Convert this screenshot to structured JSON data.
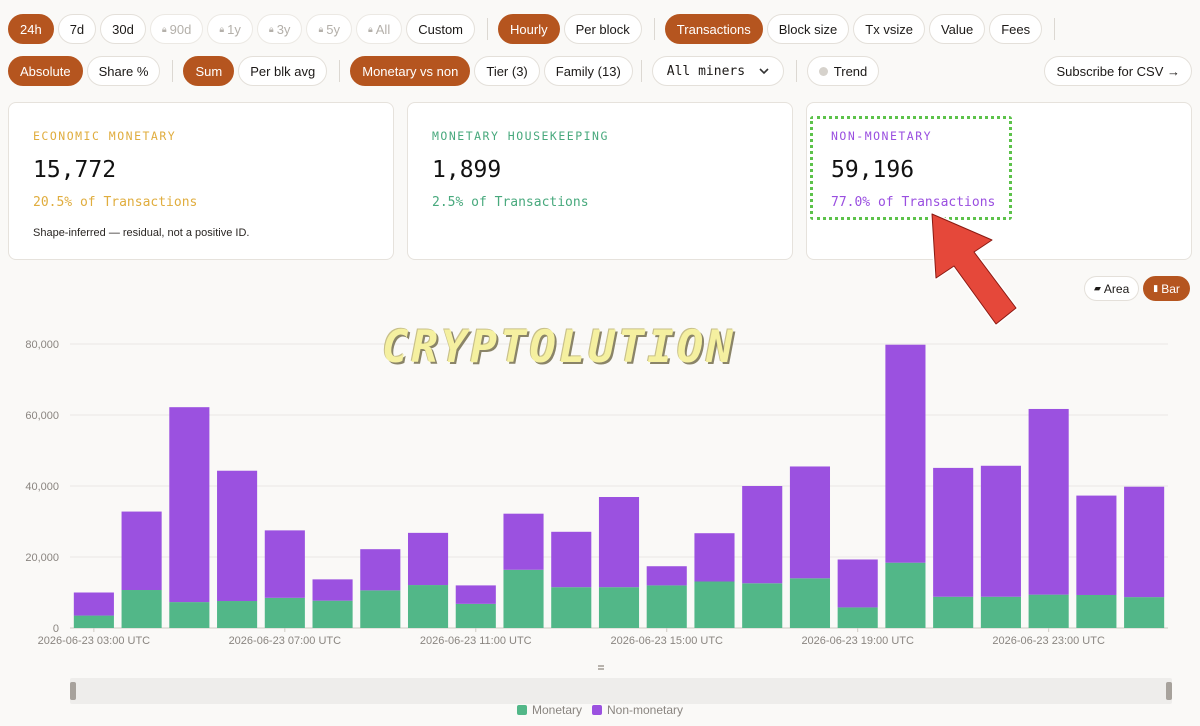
{
  "range_buttons": [
    {
      "label": "24h",
      "active": true,
      "locked": false
    },
    {
      "label": "7d",
      "active": false,
      "locked": false
    },
    {
      "label": "30d",
      "active": false,
      "locked": false
    },
    {
      "label": "90d",
      "active": false,
      "locked": true
    },
    {
      "label": "1y",
      "active": false,
      "locked": true
    },
    {
      "label": "3y",
      "active": false,
      "locked": true
    },
    {
      "label": "5y",
      "active": false,
      "locked": true
    },
    {
      "label": "All",
      "active": false,
      "locked": true
    },
    {
      "label": "Custom",
      "active": false,
      "locked": false
    }
  ],
  "granularity": {
    "hourly": "Hourly",
    "per_block": "Per block"
  },
  "metrics": {
    "transactions": "Transactions",
    "block_size": "Block size",
    "tx_vsize": "Tx vsize",
    "value": "Value",
    "fees": "Fees"
  },
  "mode": {
    "absolute": "Absolute",
    "share": "Share %"
  },
  "agg": {
    "sum": "Sum",
    "per_blk_avg": "Per blk avg"
  },
  "breakdown": {
    "monetary_vs_non": "Monetary vs non",
    "tier": "Tier (3)",
    "family": "Family (13)"
  },
  "miner_select": {
    "value": "All miners"
  },
  "trend": {
    "label": "Trend"
  },
  "subscribe": {
    "label": "Subscribe for CSV →"
  },
  "cards": {
    "economic": {
      "label": "ECONOMIC MONETARY",
      "value": "15,772",
      "share": "20.5% of Transactions",
      "note": "Shape-inferred — residual, not a positive ID."
    },
    "housekeeping": {
      "label": "MONETARY HOUSEKEEPING",
      "value": "1,899",
      "share": "2.5% of Transactions"
    },
    "non_monetary": {
      "label": "NON-MONETARY",
      "value": "59,196",
      "share": "77.0% of Transactions"
    }
  },
  "chart_toggle": {
    "area": "Area",
    "bar": "Bar"
  },
  "watermark": "CRYPTOLUTION",
  "colors": {
    "accent": "#b5551f",
    "monetary": "#52b788",
    "non_monetary": "#9b51e0",
    "economic": "#e0ad3e",
    "housekeeping": "#48a97d"
  },
  "chart_data": {
    "type": "bar",
    "stacked": true,
    "x_tick_labels": [
      "2026-06-23 03:00 UTC",
      "2026-06-23 07:00 UTC",
      "2026-06-23 11:00 UTC",
      "2026-06-23 15:00 UTC",
      "2026-06-23 19:00 UTC",
      "2026-06-23 23:00 UTC"
    ],
    "y_ticks": [
      "0",
      "20,000",
      "40,000",
      "60,000",
      "80,000"
    ],
    "ylim": [
      0,
      80000
    ],
    "grid": true,
    "legend_position": "bottom",
    "series": [
      {
        "name": "Monetary",
        "color": "#52b788",
        "values": [
          3500,
          10700,
          7300,
          7600,
          8500,
          7700,
          10600,
          12100,
          6800,
          16400,
          11500,
          11500,
          12000,
          13100,
          12600,
          14000,
          5800,
          18400,
          8800,
          8800,
          9400,
          9300,
          8700
        ]
      },
      {
        "name": "Non-monetary",
        "color": "#9b51e0",
        "values": [
          6500,
          22100,
          54900,
          36700,
          19000,
          6000,
          11600,
          14700,
          5200,
          15800,
          15600,
          25400,
          5400,
          13600,
          27400,
          31500,
          13500,
          61400,
          36300,
          36900,
          52300,
          28000,
          31100
        ]
      }
    ]
  }
}
